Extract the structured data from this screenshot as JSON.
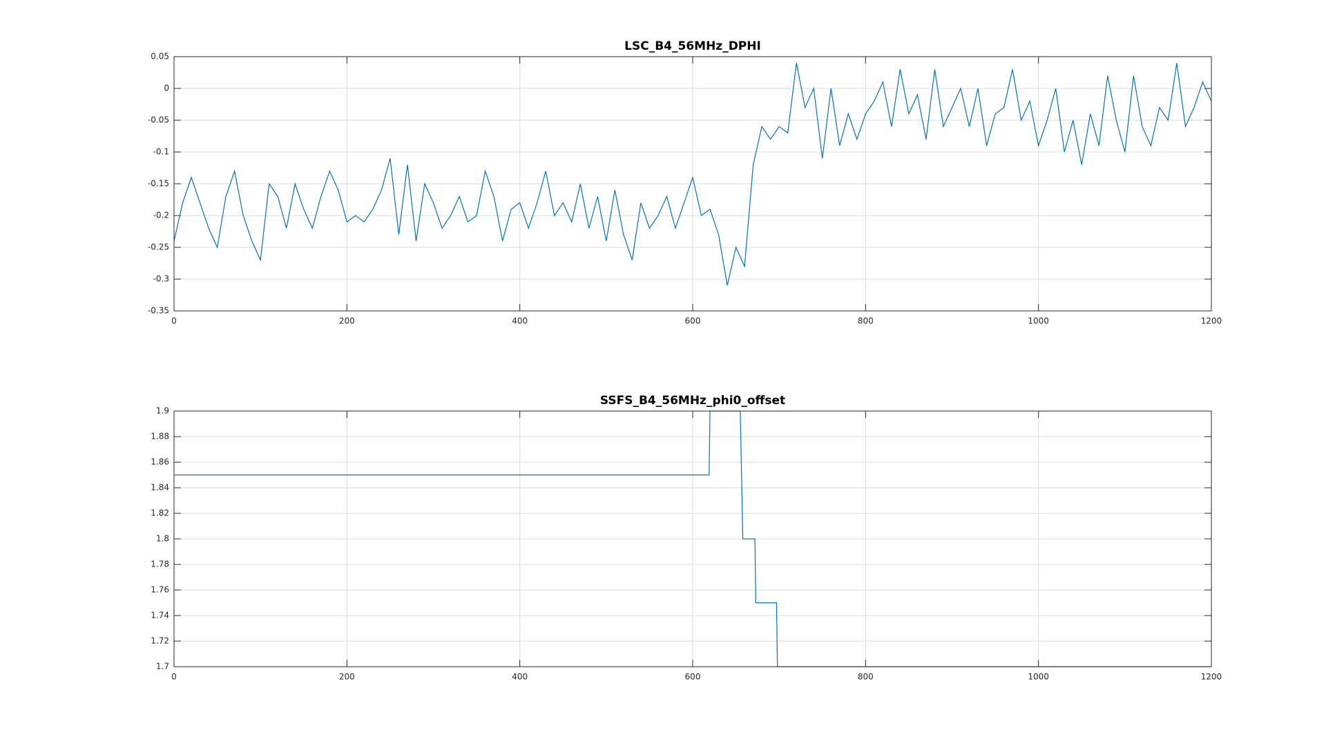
{
  "chart_data": [
    {
      "type": "line",
      "title": "LSC_B4_56MHz_DPHI",
      "x": [
        0,
        10,
        20,
        30,
        40,
        50,
        60,
        70,
        80,
        90,
        100,
        110,
        120,
        130,
        140,
        150,
        160,
        170,
        180,
        190,
        200,
        210,
        220,
        230,
        240,
        250,
        260,
        270,
        280,
        290,
        300,
        310,
        320,
        330,
        340,
        350,
        360,
        370,
        380,
        390,
        400,
        410,
        420,
        430,
        440,
        450,
        460,
        470,
        480,
        490,
        500,
        510,
        520,
        530,
        540,
        550,
        560,
        570,
        580,
        590,
        600,
        610,
        620,
        630,
        640,
        650,
        660,
        670,
        680,
        690,
        700,
        710,
        720,
        730,
        740,
        750,
        760,
        770,
        780,
        790,
        800,
        810,
        820,
        830,
        840,
        850,
        860,
        870,
        880,
        890,
        900,
        910,
        920,
        930,
        940,
        950,
        960,
        970,
        980,
        990,
        1000,
        1010,
        1020,
        1030,
        1040,
        1050,
        1060,
        1070,
        1080,
        1090,
        1100,
        1110,
        1120,
        1130,
        1140,
        1150,
        1160,
        1170,
        1180,
        1190,
        1200
      ],
      "series": [
        {
          "color": "#0072bd",
          "values": [
            -0.24,
            -0.18,
            -0.14,
            -0.18,
            -0.22,
            -0.25,
            -0.17,
            -0.13,
            -0.2,
            -0.24,
            -0.27,
            -0.15,
            -0.17,
            -0.22,
            -0.15,
            -0.19,
            -0.22,
            -0.17,
            -0.13,
            -0.16,
            -0.21,
            -0.2,
            -0.21,
            -0.19,
            -0.16,
            -0.11,
            -0.23,
            -0.12,
            -0.24,
            -0.15,
            -0.18,
            -0.22,
            -0.2,
            -0.17,
            -0.21,
            -0.2,
            -0.13,
            -0.17,
            -0.24,
            -0.19,
            -0.18,
            -0.22,
            -0.18,
            -0.13,
            -0.2,
            -0.18,
            -0.21,
            -0.15,
            -0.22,
            -0.17,
            -0.24,
            -0.16,
            -0.23,
            -0.27,
            -0.18,
            -0.22,
            -0.2,
            -0.17,
            -0.22,
            -0.18,
            -0.14,
            -0.2,
            -0.19,
            -0.23,
            -0.31,
            -0.25,
            -0.28,
            -0.12,
            -0.06,
            -0.08,
            -0.06,
            -0.07,
            0.04,
            -0.03,
            0,
            -0.11,
            0,
            -0.09,
            -0.04,
            -0.08,
            -0.04,
            -0.02,
            0.01,
            -0.06,
            0.03,
            -0.04,
            -0.01,
            -0.08,
            0.03,
            -0.06,
            -0.03,
            0,
            -0.06,
            0,
            -0.09,
            -0.04,
            -0.03,
            0.03,
            -0.05,
            -0.02,
            -0.09,
            -0.05,
            0,
            -0.1,
            -0.05,
            -0.12,
            -0.04,
            -0.09,
            0.02,
            -0.05,
            -0.1,
            0.02,
            -0.06,
            -0.09,
            -0.03,
            -0.05,
            0.04,
            -0.06,
            -0.03,
            0.01,
            -0.02
          ]
        }
      ],
      "xlim": [
        0,
        1200
      ],
      "xticks": [
        0,
        200,
        400,
        600,
        800,
        1000,
        1200
      ],
      "ylim": [
        -0.35,
        0.05
      ],
      "yticks": [
        -0.35,
        -0.3,
        -0.25,
        -0.2,
        -0.15,
        -0.1,
        -0.05,
        0,
        0.05
      ],
      "grid": true
    },
    {
      "type": "line",
      "title": "SSFS_B4_56MHz_phi0_offset",
      "x": [
        0,
        619,
        620,
        655,
        658,
        672,
        673,
        697,
        698,
        1200
      ],
      "series": [
        {
          "color": "#0072bd",
          "values": [
            1.85,
            1.85,
            1.9,
            1.9,
            1.8,
            1.8,
            1.75,
            1.75,
            1.7,
            1.7
          ]
        }
      ],
      "xlim": [
        0,
        1200
      ],
      "xticks": [
        0,
        200,
        400,
        600,
        800,
        1000,
        1200
      ],
      "ylim": [
        1.7,
        1.9
      ],
      "yticks": [
        1.7,
        1.72,
        1.74,
        1.76,
        1.78,
        1.8,
        1.82,
        1.84,
        1.86,
        1.88,
        1.9
      ],
      "grid": true
    }
  ]
}
